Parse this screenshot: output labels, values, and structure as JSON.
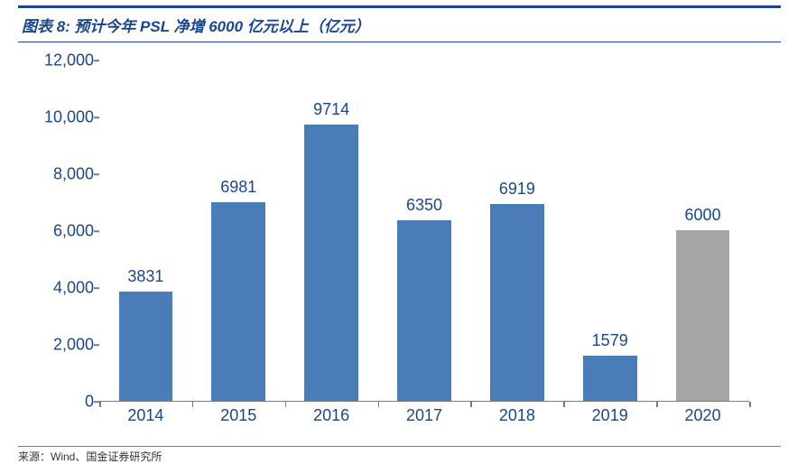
{
  "title": {
    "prefix": "图表 8:",
    "text": "预计今年 PSL 净增 6000 亿元以上（亿元）",
    "fontsize": 17,
    "color": "#19468f",
    "border_color": "#19468f",
    "font_style": "italic",
    "font_weight": "bold"
  },
  "source": {
    "text": "来源：Wind、国金证券研究所",
    "fontsize": 12,
    "color": "#333333"
  },
  "chart": {
    "type": "bar",
    "categories": [
      "2014",
      "2015",
      "2016",
      "2017",
      "2018",
      "2019",
      "2020"
    ],
    "values": [
      3831,
      6981,
      9714,
      6350,
      6919,
      1579,
      6000
    ],
    "bar_colors": [
      "#4a7db8",
      "#4a7db8",
      "#4a7db8",
      "#4a7db8",
      "#4a7db8",
      "#4a7db8",
      "#a6a6a6"
    ],
    "value_label_fontsize": 18,
    "value_label_color": "#19468f",
    "ylim": [
      0,
      12000
    ],
    "yticks": [
      0,
      2000,
      4000,
      6000,
      8000,
      10000,
      12000
    ],
    "ytick_labels": [
      "0",
      "2,000",
      "4,000",
      "6,000",
      "8,000",
      "10,000",
      "12,000"
    ],
    "tick_fontsize": 18,
    "tick_color": "#19468f",
    "axis_color": "#7a7a7a",
    "background_color": "#ffffff",
    "bar_width_ratio": 0.58,
    "grid": false
  }
}
